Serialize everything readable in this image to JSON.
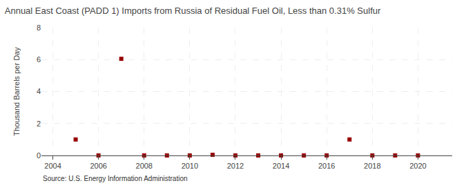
{
  "chart_data": {
    "type": "scatter",
    "title": "Annual East Coast (PADD 1) Imports from Russia of Residual Fuel Oil, Less than 0.31% Sulfur",
    "ylabel": "Thousand Barrels per Day",
    "annotations": [
      "Source: U.S. Energy Information Administration"
    ],
    "x": [
      2005,
      2006,
      2007,
      2008,
      2009,
      2010,
      2011,
      2012,
      2013,
      2014,
      2015,
      2016,
      2017,
      2018,
      2019,
      2020
    ],
    "values": [
      1.0,
      0.0,
      6.05,
      0.0,
      0.0,
      0.0,
      0.04,
      0.0,
      0.0,
      0.0,
      0.0,
      0.0,
      1.0,
      0.0,
      0.0,
      0.0
    ],
    "color": "#990000",
    "marker": "square",
    "xlim": [
      2003.5,
      2021.5
    ],
    "xticks": [
      2004,
      2006,
      2008,
      2010,
      2012,
      2014,
      2016,
      2018,
      2020
    ],
    "ylim": [
      0,
      8
    ],
    "yticks": [
      0,
      2,
      4,
      6,
      8
    ],
    "grid": true
  }
}
